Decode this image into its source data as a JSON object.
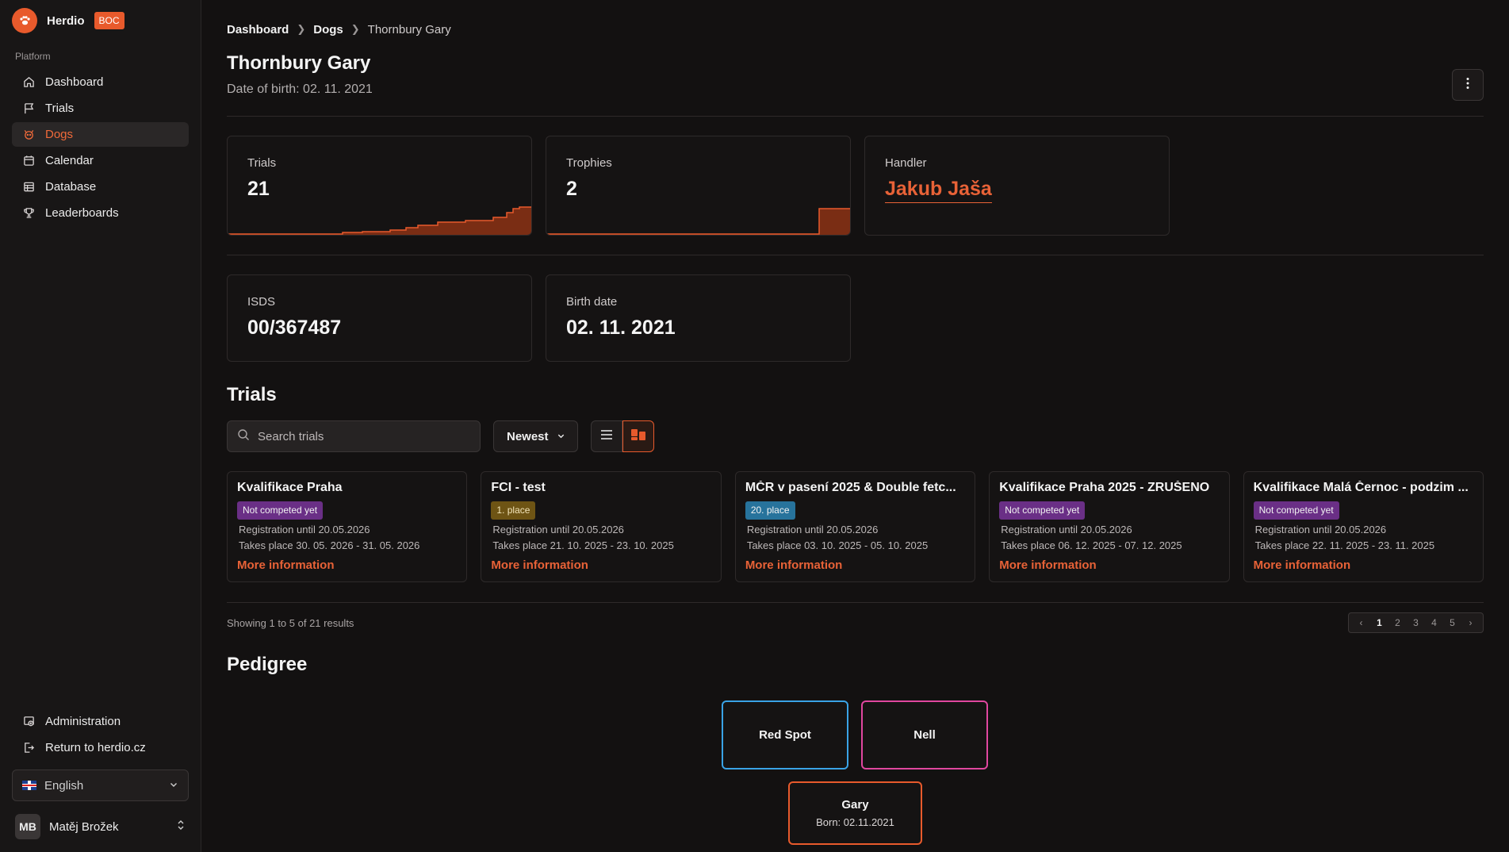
{
  "brand": {
    "name": "Herdio",
    "badge": "BOC"
  },
  "sidebar": {
    "section": "Platform",
    "items": [
      {
        "label": "Dashboard",
        "icon": "home-icon"
      },
      {
        "label": "Trials",
        "icon": "flag-icon"
      },
      {
        "label": "Dogs",
        "icon": "dog-icon",
        "active": true
      },
      {
        "label": "Calendar",
        "icon": "calendar-icon"
      },
      {
        "label": "Database",
        "icon": "table-icon"
      },
      {
        "label": "Leaderboards",
        "icon": "trophy-icon"
      }
    ],
    "bottom_items": [
      {
        "label": "Administration",
        "icon": "admin-icon"
      },
      {
        "label": "Return to herdio.cz",
        "icon": "exit-icon"
      }
    ],
    "language": "English",
    "user": {
      "initials": "MB",
      "name": "Matěj Brožek"
    }
  },
  "breadcrumb": [
    "Dashboard",
    "Dogs",
    "Thornbury Gary"
  ],
  "page": {
    "title": "Thornbury Gary",
    "subtitle": "Date of birth: 02. 11. 2021"
  },
  "stats": {
    "trials": {
      "label": "Trials",
      "value": "21"
    },
    "trophies": {
      "label": "Trophies",
      "value": "2"
    },
    "handler": {
      "label": "Handler",
      "value": "Jakub Jaša"
    },
    "isds": {
      "label": "ISDS",
      "value": "00/367487"
    },
    "birth": {
      "label": "Birth date",
      "value": "02. 11. 2021"
    }
  },
  "trials_section": {
    "title": "Trials",
    "search_placeholder": "Search trials",
    "sort_label": "Newest",
    "cards": [
      {
        "name": "Kvalifikace Praha",
        "badge": "Not competed yet",
        "badge_color": "purple",
        "registration": "Registration until 20.05.2026",
        "takes_place": "Takes place 30. 05. 2026 - 31. 05. 2026",
        "more": "More information"
      },
      {
        "name": "FCI - test",
        "badge": "1. place",
        "badge_color": "gold",
        "registration": "Registration until 20.05.2026",
        "takes_place": "Takes place 21. 10. 2025 - 23. 10. 2025",
        "more": "More information"
      },
      {
        "name": "MČR v pasení 2025 & Double fetc...",
        "badge": "20. place",
        "badge_color": "blue",
        "registration": "Registration until 20.05.2026",
        "takes_place": "Takes place 03. 10. 2025 - 05. 10. 2025",
        "more": "More information"
      },
      {
        "name": "Kvalifikace Praha 2025 - ZRUŠENO",
        "badge": "Not competed yet",
        "badge_color": "purple",
        "registration": "Registration until 20.05.2026",
        "takes_place": "Takes place 06. 12. 2025 - 07. 12. 2025",
        "more": "More information"
      },
      {
        "name": "Kvalifikace Malá Černoc - podzim ...",
        "badge": "Not competed yet",
        "badge_color": "purple",
        "registration": "Registration until 20.05.2026",
        "takes_place": "Takes place 22. 11. 2025 - 23. 11. 2025",
        "more": "More information"
      }
    ],
    "results_text": "Showing 1 to 5 of 21 results",
    "pages": [
      "1",
      "2",
      "3",
      "4",
      "5"
    ],
    "current_page": "1"
  },
  "pedigree": {
    "title": "Pedigree",
    "sire": "Red Spot",
    "dam": "Nell",
    "dog": {
      "name": "Gary",
      "born": "Born: 02.11.2021"
    }
  },
  "colors": {
    "accent": "#e85a2c",
    "sire_border": "#3aa3e6",
    "dam_border": "#e0479f"
  }
}
